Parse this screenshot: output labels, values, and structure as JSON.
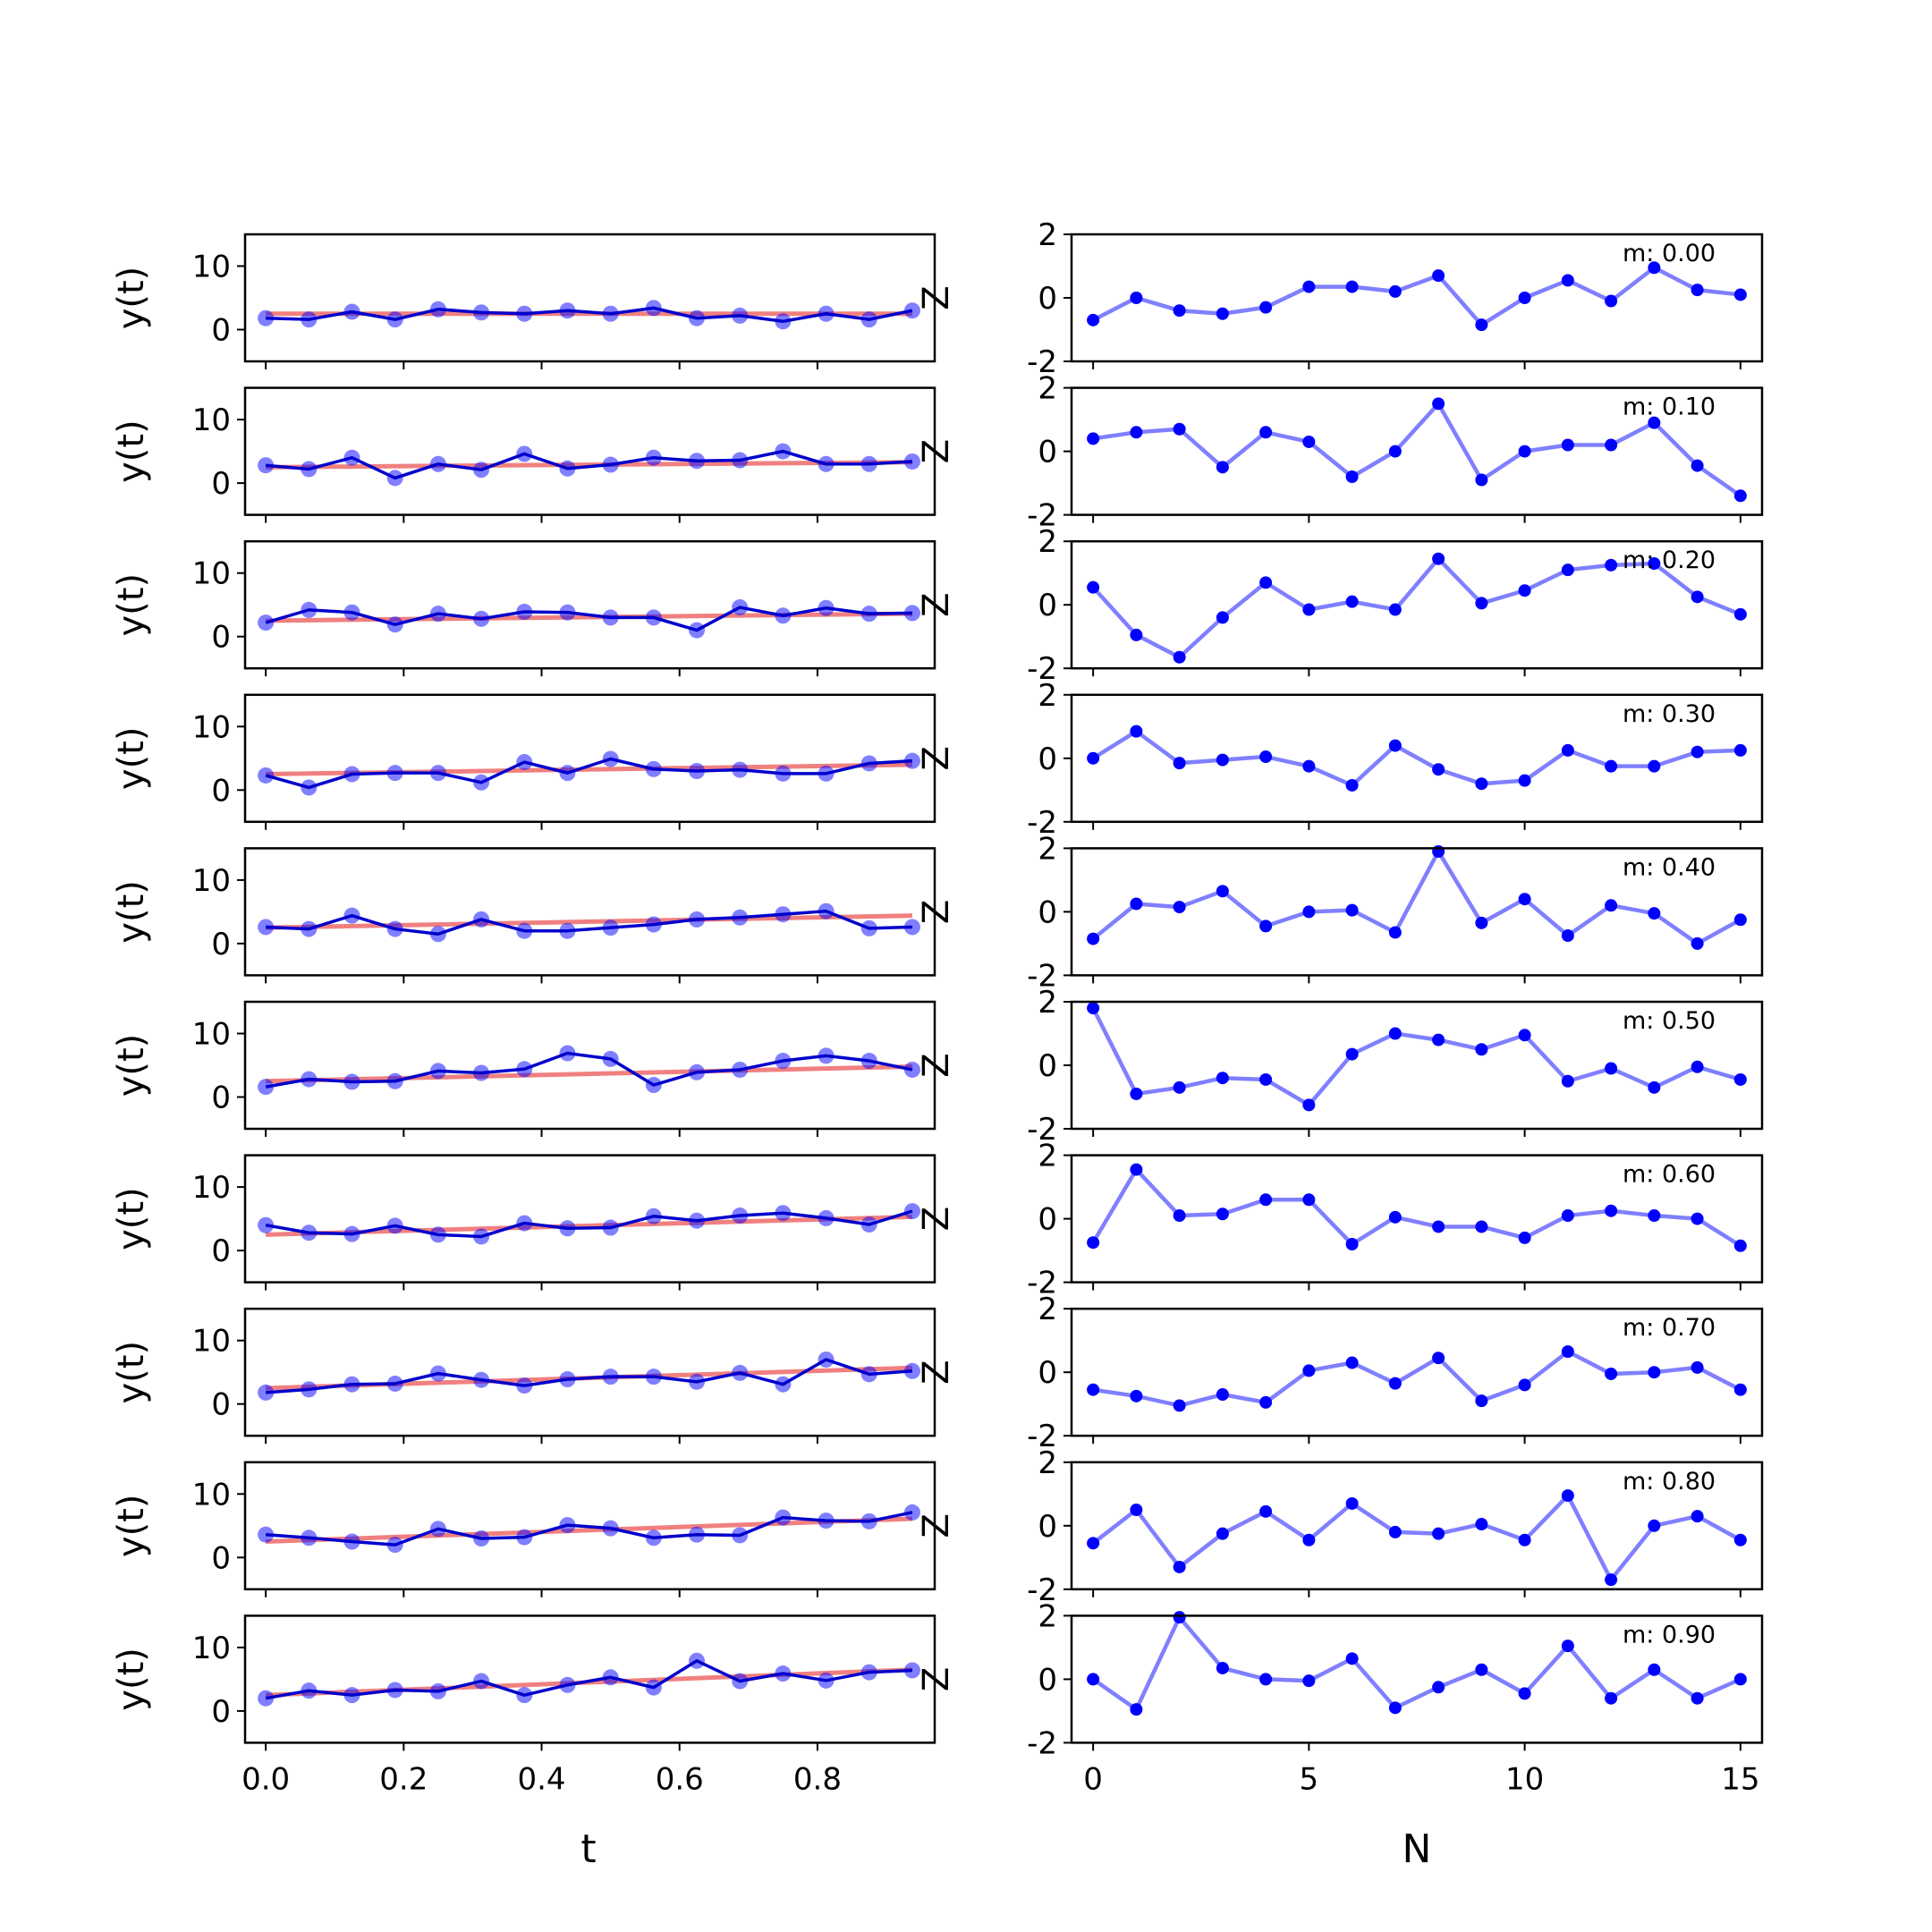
{
  "figure": {
    "left_xlabel": "t",
    "right_xlabel": "N"
  },
  "colors": {
    "trend": "#f08080",
    "data": "#0000cc",
    "residual": "#0000ff",
    "axes": "#000000"
  },
  "chart_data": {
    "type": "line",
    "t": [
      0.0,
      0.0625,
      0.125,
      0.1875,
      0.25,
      0.3125,
      0.375,
      0.4375,
      0.5,
      0.5625,
      0.625,
      0.6875,
      0.75,
      0.8125,
      0.875,
      0.9375
    ],
    "N": [
      0,
      1,
      2,
      3,
      4,
      5,
      6,
      7,
      8,
      9,
      10,
      11,
      12,
      13,
      14,
      15
    ],
    "left": {
      "ylabel": "y(t)",
      "ylim": [
        -5,
        15
      ],
      "yticks": [
        0,
        10
      ],
      "xlim": [
        -0.03,
        0.97
      ],
      "xticks": [
        0.0,
        0.2,
        0.4,
        0.6,
        0.8
      ],
      "xticklabels": [
        "0.0",
        "0.2",
        "0.4",
        "0.6",
        "0.8"
      ]
    },
    "right": {
      "ylabel": "Z",
      "ylim": [
        -2,
        2
      ],
      "yticks": [
        -2,
        0,
        2
      ],
      "xlim": [
        -0.5,
        15.5
      ],
      "xticks": [
        0,
        5,
        10,
        15
      ]
    },
    "panels": [
      {
        "m_label": "m: 0.00",
        "trend": [
          2.5,
          2.5
        ],
        "y": [
          1.8,
          1.6,
          2.8,
          1.6,
          3.2,
          2.7,
          2.5,
          3.0,
          2.5,
          3.4,
          1.8,
          2.2,
          1.3,
          2.5,
          1.6,
          3.0
        ],
        "z": [
          -0.7,
          0.0,
          -0.4,
          -0.5,
          -0.3,
          0.35,
          0.35,
          0.2,
          0.7,
          -0.85,
          0.0,
          0.55,
          -0.1,
          0.95,
          0.25,
          0.1
        ]
      },
      {
        "m_label": "m: 0.10",
        "trend": [
          2.5,
          3.3
        ],
        "y": [
          2.8,
          2.2,
          4.0,
          0.8,
          3.0,
          2.1,
          4.6,
          2.3,
          2.9,
          4.0,
          3.5,
          3.6,
          5.0,
          3.0,
          3.0,
          3.4
        ],
        "z": [
          0.4,
          0.6,
          0.7,
          -0.5,
          0.6,
          0.3,
          -0.8,
          0.0,
          1.5,
          -0.9,
          0.0,
          0.2,
          0.2,
          0.9,
          -0.45,
          -1.4
        ]
      },
      {
        "m_label": "m: 0.20",
        "trend": [
          2.5,
          3.6
        ],
        "y": [
          2.2,
          4.2,
          3.8,
          1.9,
          3.6,
          2.8,
          3.9,
          3.8,
          3.0,
          3.0,
          1.0,
          4.6,
          3.3,
          4.5,
          3.6,
          3.7
        ],
        "z": [
          0.55,
          -0.95,
          -1.65,
          -0.4,
          0.7,
          -0.15,
          0.1,
          -0.15,
          1.45,
          0.05,
          0.45,
          1.1,
          1.25,
          1.3,
          0.25,
          -0.3
        ]
      },
      {
        "m_label": "m: 0.30",
        "trend": [
          2.5,
          4.0
        ],
        "y": [
          2.3,
          0.4,
          2.5,
          2.7,
          2.7,
          1.2,
          4.4,
          2.7,
          4.9,
          3.3,
          3.0,
          3.2,
          2.6,
          2.6,
          4.2,
          4.6
        ],
        "z": [
          0.0,
          0.85,
          -0.15,
          -0.05,
          0.05,
          -0.25,
          -0.85,
          0.4,
          -0.35,
          -0.8,
          -0.7,
          0.25,
          -0.25,
          -0.25,
          0.2,
          0.25
        ]
      },
      {
        "m_label": "m: 0.40",
        "trend": [
          2.5,
          4.4
        ],
        "y": [
          2.6,
          2.3,
          4.4,
          2.3,
          1.5,
          3.8,
          2.0,
          2.0,
          2.5,
          3.0,
          3.8,
          4.1,
          4.6,
          5.1,
          2.4,
          2.6
        ],
        "z": [
          -0.85,
          0.25,
          0.15,
          0.65,
          -0.45,
          0.0,
          0.05,
          -0.65,
          1.9,
          -0.35,
          0.4,
          -0.75,
          0.2,
          -0.05,
          -1.0,
          -0.25
        ]
      },
      {
        "m_label": "m: 0.50",
        "trend": [
          2.5,
          4.8
        ],
        "y": [
          1.6,
          2.8,
          2.4,
          2.5,
          4.1,
          3.8,
          4.4,
          6.9,
          6.0,
          1.9,
          3.9,
          4.3,
          5.7,
          6.5,
          5.7,
          4.3
        ],
        "z": [
          1.8,
          -0.9,
          -0.7,
          -0.4,
          -0.45,
          -1.25,
          0.35,
          1.0,
          0.8,
          0.5,
          0.95,
          -0.5,
          -0.1,
          -0.7,
          -0.05,
          -0.45
        ]
      },
      {
        "m_label": "m: 0.60",
        "trend": [
          2.5,
          5.3
        ],
        "y": [
          4.0,
          2.8,
          2.6,
          3.9,
          2.5,
          2.2,
          4.3,
          3.5,
          3.6,
          5.4,
          4.7,
          5.5,
          5.9,
          5.1,
          4.1,
          6.2
        ],
        "z": [
          -0.75,
          1.55,
          0.1,
          0.15,
          0.6,
          0.6,
          -0.8,
          0.05,
          -0.25,
          -0.25,
          -0.6,
          0.1,
          0.25,
          0.1,
          0.0,
          -0.85
        ]
      },
      {
        "m_label": "m: 0.70",
        "trend": [
          2.5,
          5.7
        ],
        "y": [
          1.8,
          2.3,
          3.1,
          3.2,
          4.8,
          3.8,
          2.9,
          3.9,
          4.3,
          4.3,
          3.5,
          4.9,
          3.1,
          7.0,
          4.7,
          5.2
        ],
        "z": [
          -0.55,
          -0.75,
          -1.05,
          -0.7,
          -0.95,
          0.05,
          0.3,
          -0.35,
          0.45,
          -0.9,
          -0.4,
          0.65,
          -0.05,
          0.0,
          0.15,
          -0.55
        ]
      },
      {
        "m_label": "m: 0.80",
        "trend": [
          2.5,
          6.1
        ],
        "y": [
          3.6,
          3.1,
          2.5,
          2.0,
          4.5,
          3.0,
          3.2,
          5.1,
          4.6,
          3.1,
          3.6,
          3.5,
          6.3,
          5.8,
          5.7,
          7.1
        ],
        "z": [
          -0.55,
          0.5,
          -1.3,
          -0.25,
          0.45,
          -0.45,
          0.7,
          -0.2,
          -0.25,
          0.05,
          -0.45,
          0.95,
          -1.7,
          0.0,
          0.3,
          -0.45
        ]
      },
      {
        "m_label": "m: 0.90",
        "trend": [
          2.5,
          6.5
        ],
        "y": [
          2.0,
          3.2,
          2.5,
          3.3,
          3.1,
          4.7,
          2.5,
          4.1,
          5.3,
          3.7,
          7.9,
          4.7,
          5.9,
          4.8,
          6.1,
          6.4
        ],
        "z": [
          0.0,
          -0.95,
          1.95,
          0.35,
          0.0,
          -0.05,
          0.65,
          -0.9,
          -0.25,
          0.3,
          -0.45,
          1.05,
          -0.6,
          0.3,
          -0.6,
          0.0
        ]
      }
    ]
  }
}
